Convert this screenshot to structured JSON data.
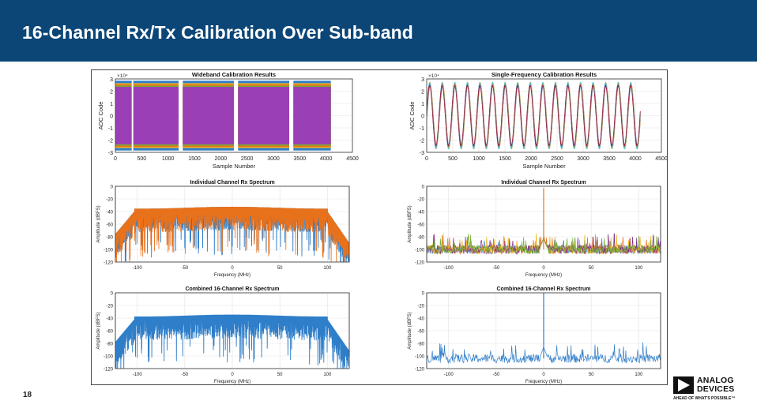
{
  "slide": {
    "title": "16-Channel Rx/Tx Calibration Over Sub-band",
    "page_number": "18",
    "header_color": "#0b4677"
  },
  "logo": {
    "line1": "ANALOG",
    "line2": "DEVICES",
    "tagline": "AHEAD OF WHAT'S POSSIBLE™"
  },
  "chart_data": [
    {
      "type": "line",
      "title": "Wideband Calibration Results",
      "xlabel": "Sample Number",
      "ylabel": "ADC Code",
      "y_multiplier": "×10⁴",
      "xlim": [
        0,
        4500
      ],
      "ylim": [
        -3,
        3
      ],
      "xticks": [
        "0",
        "500",
        "1000",
        "1500",
        "2000",
        "2500",
        "3000",
        "3500",
        "4000",
        "4500"
      ],
      "yticks": [
        "-3",
        "-2",
        "-1",
        "0",
        "1",
        "2",
        "3"
      ],
      "signal": "wideband",
      "grid": true,
      "colors": [
        "#9a3fb5",
        "#e8711c",
        "#2f7ec9",
        "#edb120",
        "#77ac30",
        "#4dbeee",
        "#a2142f"
      ]
    },
    {
      "type": "line",
      "title": "Single-Frequency Calibration Results",
      "xlabel": "Sample Number",
      "ylabel": "ADC Code",
      "y_multiplier": "×10⁴",
      "xlim": [
        0,
        4500
      ],
      "ylim": [
        -3,
        3
      ],
      "xticks": [
        "0",
        "500",
        "1000",
        "1500",
        "2000",
        "2500",
        "3000",
        "3500",
        "4000",
        "4500"
      ],
      "yticks": [
        "-3",
        "-2",
        "-1",
        "0",
        "1",
        "2",
        "3"
      ],
      "signal": "sine",
      "cycles": 17,
      "amplitude": 2.6,
      "grid": true,
      "colors": [
        "#2f7ec9",
        "#e8711c",
        "#edb120",
        "#7e2f8e",
        "#77ac30",
        "#4dbeee",
        "#a2142f"
      ]
    },
    {
      "type": "line",
      "title": "Individual Channel Rx Spectrum",
      "xlabel": "Frequency (MHz)",
      "ylabel": "Amplitude (dBFS)",
      "xlim": [
        -123,
        123
      ],
      "ylim": [
        -120,
        0
      ],
      "xticks": [
        "-100",
        "-50",
        "0",
        "50",
        "100"
      ],
      "xtick_values": [
        -100,
        -50,
        0,
        50,
        100
      ],
      "yticks": [
        "-120",
        "-100",
        "-80",
        "-60",
        "-40",
        "-20",
        "0"
      ],
      "signal": "wideband_spectrum",
      "passband": [
        -103,
        100
      ],
      "passband_level": -34,
      "grid": true,
      "colors": [
        "#2f7ec9",
        "#e8711c"
      ]
    },
    {
      "type": "line",
      "title": "Individual Channel Rx Spectrum",
      "xlabel": "Frequency (MHz)",
      "ylabel": "Amplitude (dBFS)",
      "xlim": [
        -123,
        123
      ],
      "ylim": [
        -120,
        0
      ],
      "xticks": [
        "-100",
        "-50",
        "0",
        "50",
        "100"
      ],
      "xtick_values": [
        -100,
        -50,
        0,
        50,
        100
      ],
      "yticks": [
        "-120",
        "-100",
        "-80",
        "-60",
        "-40",
        "-20",
        "0"
      ],
      "signal": "tone_spectrum",
      "tone_frequency": 0,
      "tone_level": -3,
      "noise_floor": -100,
      "grid": true,
      "colors": [
        "#2f7ec9",
        "#e8711c",
        "#edb120",
        "#7e2f8e",
        "#77ac30"
      ]
    },
    {
      "type": "line",
      "title": "Combined 16-Channel Rx Spectrum",
      "xlabel": "Frequency (MHz)",
      "ylabel": "Amplitude (dBFS)",
      "xlim": [
        -123,
        123
      ],
      "ylim": [
        -120,
        0
      ],
      "xticks": [
        "-100",
        "-50",
        "0",
        "50",
        "100"
      ],
      "xtick_values": [
        -100,
        -50,
        0,
        50,
        100
      ],
      "yticks": [
        "-120",
        "-100",
        "-80",
        "-60",
        "-40",
        "-20",
        "0"
      ],
      "signal": "wideband_spectrum",
      "passband": [
        -103,
        100
      ],
      "passband_level": -36,
      "grid": true,
      "colors": [
        "#2f7ec9"
      ]
    },
    {
      "type": "line",
      "title": "Combined 16-Channel Rx Spectrum",
      "xlabel": "Frequency (MHz)",
      "ylabel": "Amplitude (dBFS)",
      "xlim": [
        -123,
        123
      ],
      "ylim": [
        -120,
        0
      ],
      "xticks": [
        "-100",
        "-50",
        "0",
        "50",
        "100"
      ],
      "xtick_values": [
        -100,
        -50,
        0,
        50,
        100
      ],
      "yticks": [
        "-120",
        "-100",
        "-80",
        "-60",
        "-40",
        "-20",
        "0"
      ],
      "signal": "tone_spectrum",
      "tone_frequency": 0,
      "tone_level": 0,
      "noise_floor": -104,
      "grid": true,
      "colors": [
        "#2f7ec9"
      ]
    }
  ]
}
